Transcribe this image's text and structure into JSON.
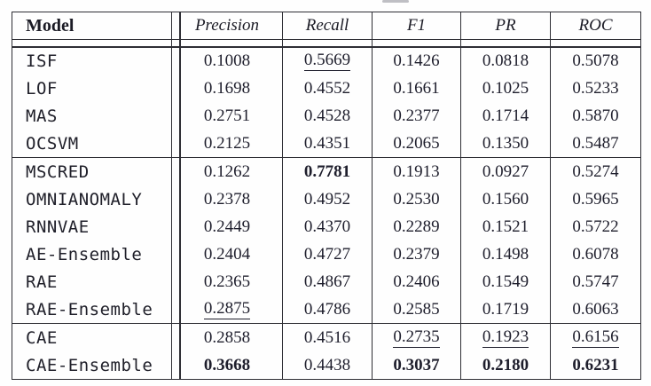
{
  "page": {
    "background_color": "#fefefe",
    "text_color": "#1b1b25",
    "border_color": "#2e2e34",
    "emphasis": {
      "bold_meaning_shown_as": "bold",
      "second_best_shown_as": "underline"
    }
  },
  "table": {
    "columns": [
      "Model",
      "Precision",
      "Recall",
      "F1",
      "PR",
      "ROC"
    ],
    "group_end_rows": [
      3,
      9
    ],
    "rows": [
      {
        "model": "ISF",
        "values": [
          {
            "v": "0.1008"
          },
          {
            "v": "0.5669",
            "style": "underline"
          },
          {
            "v": "0.1426"
          },
          {
            "v": "0.0818"
          },
          {
            "v": "0.5078"
          }
        ]
      },
      {
        "model": "LOF",
        "values": [
          {
            "v": "0.1698"
          },
          {
            "v": "0.4552"
          },
          {
            "v": "0.1661"
          },
          {
            "v": "0.1025"
          },
          {
            "v": "0.5233"
          }
        ]
      },
      {
        "model": "MAS",
        "values": [
          {
            "v": "0.2751"
          },
          {
            "v": "0.4528"
          },
          {
            "v": "0.2377"
          },
          {
            "v": "0.1714"
          },
          {
            "v": "0.5870"
          }
        ]
      },
      {
        "model": "OCSVM",
        "values": [
          {
            "v": "0.2125"
          },
          {
            "v": "0.4351"
          },
          {
            "v": "0.2065"
          },
          {
            "v": "0.1350"
          },
          {
            "v": "0.5487"
          }
        ]
      },
      {
        "model": "MSCRED",
        "values": [
          {
            "v": "0.1262"
          },
          {
            "v": "0.7781",
            "style": "bold"
          },
          {
            "v": "0.1913"
          },
          {
            "v": "0.0927"
          },
          {
            "v": "0.5274"
          }
        ]
      },
      {
        "model": "OMNIANOMALY",
        "values": [
          {
            "v": "0.2378"
          },
          {
            "v": "0.4952"
          },
          {
            "v": "0.2530"
          },
          {
            "v": "0.1560"
          },
          {
            "v": "0.5965"
          }
        ]
      },
      {
        "model": "RNNVAE",
        "values": [
          {
            "v": "0.2449"
          },
          {
            "v": "0.4370"
          },
          {
            "v": "0.2289"
          },
          {
            "v": "0.1521"
          },
          {
            "v": "0.5722"
          }
        ]
      },
      {
        "model": "AE-Ensemble",
        "values": [
          {
            "v": "0.2404"
          },
          {
            "v": "0.4727"
          },
          {
            "v": "0.2379"
          },
          {
            "v": "0.1498"
          },
          {
            "v": "0.6078"
          }
        ]
      },
      {
        "model": "RAE",
        "values": [
          {
            "v": "0.2365"
          },
          {
            "v": "0.4867"
          },
          {
            "v": "0.2406"
          },
          {
            "v": "0.1549"
          },
          {
            "v": "0.5747"
          }
        ]
      },
      {
        "model": "RAE-Ensemble",
        "values": [
          {
            "v": "0.2875",
            "style": "underline"
          },
          {
            "v": "0.4786"
          },
          {
            "v": "0.2585"
          },
          {
            "v": "0.1719"
          },
          {
            "v": "0.6063"
          }
        ]
      },
      {
        "model": "CAE",
        "values": [
          {
            "v": "0.2858"
          },
          {
            "v": "0.4516"
          },
          {
            "v": "0.2735",
            "style": "underline"
          },
          {
            "v": "0.1923",
            "style": "underline"
          },
          {
            "v": "0.6156",
            "style": "underline"
          }
        ]
      },
      {
        "model": "CAE-Ensemble",
        "values": [
          {
            "v": "0.3668",
            "style": "bold"
          },
          {
            "v": "0.4438"
          },
          {
            "v": "0.3037",
            "style": "bold"
          },
          {
            "v": "0.2180",
            "style": "bold"
          },
          {
            "v": "0.6231",
            "style": "bold"
          }
        ]
      }
    ]
  }
}
